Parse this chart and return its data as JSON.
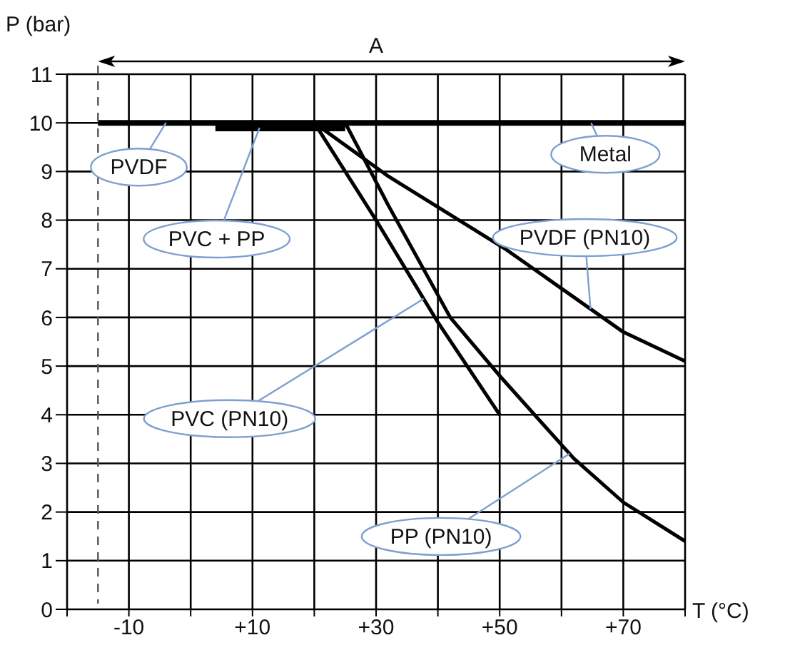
{
  "chart_data": {
    "type": "line",
    "xlabel": "T (°C)",
    "ylabel": "P (bar)",
    "xlim": [
      -20,
      80
    ],
    "xticks": [
      {
        "value": -20,
        "label": null
      },
      -10,
      {
        "value": 0,
        "label": null
      },
      {
        "value": 10,
        "label": "+10"
      },
      {
        "value": 20,
        "label": null
      },
      {
        "value": 30,
        "label": "+30"
      },
      {
        "value": 40,
        "label": null
      },
      {
        "value": 50,
        "label": "+50"
      },
      {
        "value": 60,
        "label": null
      },
      {
        "value": 70,
        "label": "+70"
      },
      {
        "value": 80,
        "label": null
      }
    ],
    "ylim": [
      0,
      11
    ],
    "yticks": [
      0,
      1,
      2,
      3,
      4,
      5,
      6,
      7,
      8,
      9,
      10,
      11
    ],
    "grid": true,
    "marker": "none",
    "line_style": "solid",
    "series": [
      {
        "name": "Metal",
        "color": "#000000",
        "x": [
          -15,
          80
        ],
        "values": [
          10,
          10
        ]
      },
      {
        "name": "PVC + PP",
        "color": "#000000",
        "x": [
          4,
          25
        ],
        "values": [
          9.9,
          9.9
        ]
      },
      {
        "name": "PVDF (PN10)",
        "color": "#000000",
        "x": [
          20,
          32,
          51,
          70,
          80
        ],
        "values": [
          10,
          8.9,
          7.4,
          5.7,
          5.1
        ]
      },
      {
        "name": "PVC (PN10)",
        "color": "#000000",
        "x": [
          20,
          30,
          40,
          50
        ],
        "values": [
          10,
          8,
          5.9,
          4
        ]
      },
      {
        "name": "PP (PN10)",
        "color": "#000000",
        "x": [
          25,
          32,
          42,
          50,
          62,
          70,
          80
        ],
        "values": [
          10,
          8.3,
          6,
          4.8,
          3.1,
          2.2,
          1.4
        ]
      }
    ],
    "ref_lines": [
      {
        "axis": "x",
        "value": -15,
        "line_style": "dashed",
        "color": "#555555"
      }
    ],
    "annotations": [
      "A",
      {
        "text": "PVDF",
        "x": -4,
        "y": 10
      }
    ]
  }
}
